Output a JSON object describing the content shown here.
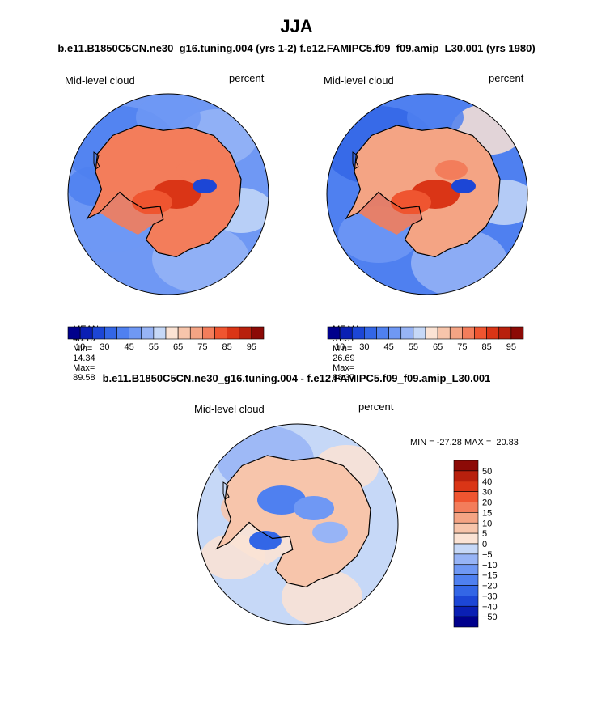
{
  "header": {
    "title": "JJA",
    "subtitle_top": "b.e11.B1850C5CN.ne30_g16.tuning.004 (yrs 1-2)  f.e12.FAMIPC5.f09_f09.amip_L30.001 (yrs 1980)",
    "subtitle_diff": "b.e11.B1850C5CN.ne30_g16.tuning.004 - f.e12.FAMIPC5.f09_f09.amip_L30.001"
  },
  "chart_data": [
    {
      "type": "heatmap",
      "projection": "south-polar-stereographic",
      "left_label": "Mid-level cloud",
      "right_label": "percent",
      "stats": {
        "mean_label": "MEAN=",
        "mean": "48.19",
        "min_label": "Min=",
        "min": "14.34",
        "max_label": "Max=",
        "max": "89.58"
      },
      "colorbar": {
        "orientation": "horizontal",
        "levels": [
          10,
          20,
          25,
          30,
          35,
          40,
          45,
          50,
          55,
          60,
          65,
          70,
          75,
          80,
          85,
          90,
          95
        ],
        "tick_labels": [
          "10",
          "30",
          "45",
          "55",
          "65",
          "75",
          "85",
          "95"
        ]
      }
    },
    {
      "type": "heatmap",
      "projection": "south-polar-stereographic",
      "left_label": "Mid-level cloud",
      "right_label": "percent",
      "stats": {
        "mean_label": "MEAN=",
        "mean": "51.51",
        "min_label": "Min=",
        "min": "26.69",
        "max_label": "Max=",
        "max": "88.37"
      },
      "colorbar": {
        "orientation": "horizontal",
        "levels": [
          10,
          20,
          25,
          30,
          35,
          40,
          45,
          50,
          55,
          60,
          65,
          70,
          75,
          80,
          85,
          90,
          95
        ],
        "tick_labels": [
          "10",
          "30",
          "45",
          "55",
          "65",
          "75",
          "85",
          "95"
        ]
      }
    },
    {
      "type": "heatmap",
      "projection": "south-polar-stereographic",
      "left_label": "Mid-level cloud",
      "right_label": "percent",
      "stats_text": "MIN = -27.28 MAX =  20.83",
      "colorbar": {
        "orientation": "vertical",
        "levels": [
          50,
          40,
          30,
          20,
          15,
          10,
          5,
          0,
          -5,
          -10,
          -15,
          -20,
          -30,
          -40,
          -50
        ],
        "tick_labels": [
          "50",
          "40",
          "30",
          "20",
          "15",
          "10",
          "5",
          "0",
          "−5",
          "−10",
          "−15",
          "−20",
          "−30",
          "−40",
          "−50"
        ]
      }
    }
  ],
  "colors": {
    "scale12": [
      "#00008c",
      "#0a1fb4",
      "#1c46d6",
      "#3366e6",
      "#4f80f0",
      "#6f98f4",
      "#97b4f6",
      "#c6d8f7",
      "#fbe3d4",
      "#f7c5ab",
      "#f4a484",
      "#f37d5b",
      "#ef5530",
      "#da3516",
      "#b8200d",
      "#8c0a06"
    ],
    "diff": [
      "#8c0a06",
      "#b8200d",
      "#da3516",
      "#ef5530",
      "#f37d5b",
      "#f4a484",
      "#f7c5ab",
      "#fbe3d4",
      "#c6d8f7",
      "#97b4f6",
      "#6f98f4",
      "#4f80f0",
      "#3366e6",
      "#1c46d6",
      "#0a1fb4",
      "#00008c"
    ],
    "land_outline": "#000000"
  }
}
